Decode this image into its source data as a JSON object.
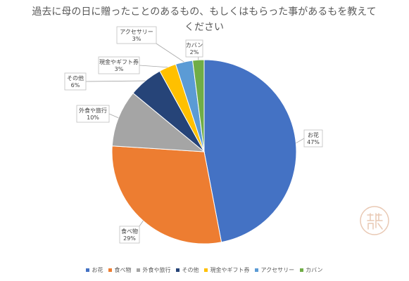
{
  "chart_data": {
    "type": "pie",
    "title": "過去に母の日に贈ったことのあるもの、もしくはもらった事があるもを教えてください",
    "legend_position": "bottom",
    "slices": [
      {
        "name": "お花",
        "value": 47,
        "label": "47%",
        "color": "#4472C4"
      },
      {
        "name": "食べ物",
        "value": 29,
        "label": "29%",
        "color": "#ED7D31"
      },
      {
        "name": "外食や旅行",
        "value": 10,
        "label": "10%",
        "color": "#A5A5A5"
      },
      {
        "name": "その他",
        "value": 6,
        "label": "6%",
        "color": "#264478"
      },
      {
        "name": "現金やギフト券",
        "value": 3,
        "label": "3%",
        "color": "#FFC000"
      },
      {
        "name": "アクセサリー",
        "value": 3,
        "label": "3%",
        "color": "#5B9BD5"
      },
      {
        "name": "カバン",
        "value": 2,
        "label": "2%",
        "color": "#70AD47"
      }
    ]
  }
}
